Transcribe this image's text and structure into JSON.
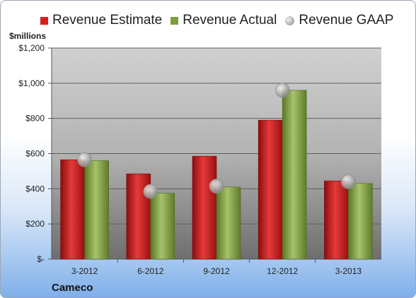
{
  "legend": {
    "estimate_label": "Revenue Estimate",
    "actual_label": "Revenue Actual",
    "gaap_label": "Revenue GAAP"
  },
  "unit_label": "$millions",
  "company_label": "Cameco",
  "colors": {
    "estimate": "#d81e1e",
    "actual": "#7d9e3e",
    "gaap": "#b4b4b4"
  },
  "chart_data": {
    "type": "bar",
    "categories": [
      "3-2012",
      "6-2012",
      "9-2012",
      "12-2012",
      "3-2013"
    ],
    "series": [
      {
        "name": "Revenue Estimate",
        "values": [
          565,
          485,
          585,
          790,
          445
        ]
      },
      {
        "name": "Revenue Actual",
        "values": [
          560,
          375,
          410,
          960,
          430
        ]
      },
      {
        "name": "Revenue GAAP",
        "values": [
          565,
          385,
          415,
          960,
          440
        ]
      }
    ],
    "ylabel": "$millions",
    "ylim": [
      0,
      1200
    ],
    "ytick_labels": [
      "$-",
      "$200",
      "$400",
      "$600",
      "$800",
      "$1,000",
      "$1,200"
    ],
    "grid": true,
    "legend_position": "top"
  }
}
